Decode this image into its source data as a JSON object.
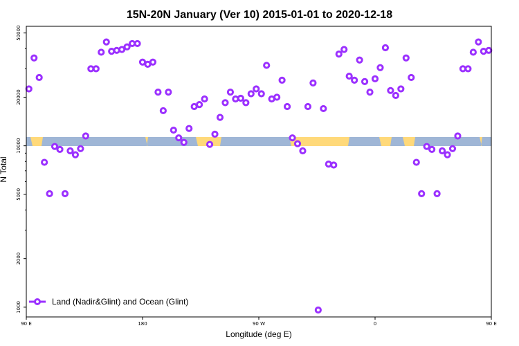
{
  "chart_data": {
    "type": "scatter",
    "title": "15N-20N January (Ver 10)   2015-01-01 to 2020-12-18",
    "xlabel": "Longitude (deg E)",
    "ylabel": "N Total",
    "y_scale": "log",
    "xlim": [
      90,
      450
    ],
    "ylim": [
      870,
      55000
    ],
    "x_ticks": [
      {
        "value": 90,
        "label": "90 E"
      },
      {
        "value": 180,
        "label": "180"
      },
      {
        "value": 270,
        "label": "90 W"
      },
      {
        "value": 360,
        "label": "0"
      },
      {
        "value": 450,
        "label": "90 E"
      },
      {
        "value": 540,
        "label": "180"
      }
    ],
    "y_ticks": [
      {
        "value": 1000,
        "label": "1000"
      },
      {
        "value": 2000,
        "label": "2000"
      },
      {
        "value": 5000,
        "label": "5000"
      },
      {
        "value": 10000,
        "label": "10000"
      },
      {
        "value": 20000,
        "label": "20000"
      },
      {
        "value": 50000,
        "label": "50000"
      }
    ],
    "legend": {
      "position": "bottom-left",
      "entries": [
        "Land (Nadir&Glint) and Ocean (Glint)"
      ]
    },
    "grid": false,
    "colors": {
      "points": "#9b30ff",
      "ocean_band": "#9fb6d6",
      "land_band": "#ffd97a"
    },
    "series": [
      {
        "name": "Land (Nadir&Glint) and Ocean (Glint)",
        "points": [
          [
            92,
            22500
          ],
          [
            96,
            35000
          ],
          [
            100,
            26500
          ],
          [
            104,
            7900
          ],
          [
            108,
            5050
          ],
          [
            112,
            9900
          ],
          [
            116,
            9500
          ],
          [
            120,
            5050
          ],
          [
            124,
            9300
          ],
          [
            128,
            8800
          ],
          [
            132,
            9600
          ],
          [
            136,
            11500
          ],
          [
            140,
            30000
          ],
          [
            144,
            30000
          ],
          [
            148,
            38000
          ],
          [
            152,
            44000
          ],
          [
            156,
            38500
          ],
          [
            160,
            39000
          ],
          [
            164,
            39500
          ],
          [
            168,
            41000
          ],
          [
            172,
            43000
          ],
          [
            176,
            43000
          ],
          [
            180,
            33000
          ],
          [
            184,
            32000
          ],
          [
            188,
            33000
          ],
          [
            192,
            21500
          ],
          [
            196,
            16500
          ],
          [
            200,
            21500
          ],
          [
            204,
            12500
          ],
          [
            208,
            11200
          ],
          [
            212,
            10500
          ],
          [
            216,
            12800
          ],
          [
            220,
            17500
          ],
          [
            224,
            18000
          ],
          [
            228,
            19500
          ],
          [
            232,
            10200
          ],
          [
            236,
            11800
          ],
          [
            240,
            15000
          ],
          [
            244,
            18500
          ],
          [
            248,
            21500
          ],
          [
            252,
            19500
          ],
          [
            256,
            19700
          ],
          [
            260,
            18500
          ],
          [
            264,
            21000
          ],
          [
            268,
            22500
          ],
          [
            272,
            21000
          ],
          [
            276,
            31500
          ],
          [
            280,
            19500
          ],
          [
            284,
            20000
          ],
          [
            288,
            25500
          ],
          [
            292,
            17500
          ],
          [
            296,
            11200
          ],
          [
            300,
            10300
          ],
          [
            304,
            9300
          ],
          [
            308,
            17500
          ],
          [
            312,
            24500
          ],
          [
            316,
            960
          ],
          [
            320,
            17000
          ],
          [
            324,
            7700
          ],
          [
            328,
            7600
          ],
          [
            332,
            37000
          ],
          [
            336,
            39500
          ],
          [
            340,
            27000
          ],
          [
            344,
            25500
          ],
          [
            348,
            34000
          ],
          [
            352,
            25000
          ],
          [
            356,
            21500
          ],
          [
            360,
            26000
          ],
          [
            364,
            30500
          ],
          [
            368,
            40500
          ],
          [
            372,
            22000
          ],
          [
            376,
            20500
          ],
          [
            380,
            22500
          ],
          [
            384,
            35000
          ],
          [
            388,
            26500
          ],
          [
            392,
            7900
          ],
          [
            396,
            5050
          ],
          [
            400,
            9900
          ],
          [
            404,
            9500
          ],
          [
            408,
            5050
          ],
          [
            412,
            9300
          ],
          [
            416,
            8800
          ],
          [
            420,
            9600
          ],
          [
            424,
            11500
          ],
          [
            428,
            30000
          ],
          [
            432,
            30000
          ],
          [
            436,
            38000
          ],
          [
            440,
            44000
          ],
          [
            444,
            38500
          ],
          [
            448,
            39000
          ]
        ]
      }
    ]
  }
}
